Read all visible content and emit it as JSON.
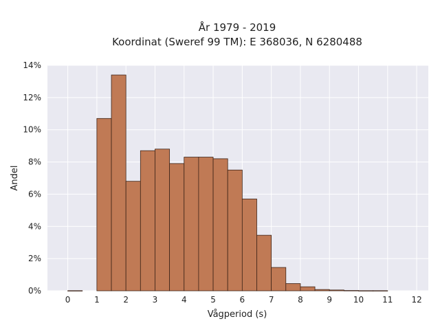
{
  "chart_data": {
    "type": "bar",
    "title_line1": "År 1979 - 2019",
    "title_line2": "Koordinat (Sweref 99 TM): E 368036, N 6280488",
    "xlabel": "Vågperiod (s)",
    "ylabel": "Andel",
    "xlim": [
      -0.7,
      12.4
    ],
    "ylim": [
      0,
      0.14
    ],
    "x_ticks": [
      0,
      1,
      2,
      3,
      4,
      5,
      6,
      7,
      8,
      9,
      10,
      11,
      12
    ],
    "x_tick_labels": [
      "0",
      "1",
      "2",
      "3",
      "4",
      "5",
      "6",
      "7",
      "8",
      "9",
      "10",
      "11",
      "12"
    ],
    "y_ticks": [
      0,
      0.02,
      0.04,
      0.06,
      0.08,
      0.1,
      0.12,
      0.14
    ],
    "y_tick_labels": [
      "0%",
      "2%",
      "4%",
      "6%",
      "8%",
      "10%",
      "12%",
      "14%"
    ],
    "grid": true,
    "bin_width": 0.5,
    "bins": [
      {
        "start": 0.0,
        "value": 0.0001
      },
      {
        "start": 1.0,
        "value": 0.107
      },
      {
        "start": 1.5,
        "value": 0.134
      },
      {
        "start": 2.0,
        "value": 0.068
      },
      {
        "start": 2.5,
        "value": 0.087
      },
      {
        "start": 3.0,
        "value": 0.088
      },
      {
        "start": 3.5,
        "value": 0.079
      },
      {
        "start": 4.0,
        "value": 0.083
      },
      {
        "start": 4.5,
        "value": 0.083
      },
      {
        "start": 5.0,
        "value": 0.082
      },
      {
        "start": 5.5,
        "value": 0.075
      },
      {
        "start": 6.0,
        "value": 0.057
      },
      {
        "start": 6.5,
        "value": 0.0345
      },
      {
        "start": 7.0,
        "value": 0.0145
      },
      {
        "start": 7.5,
        "value": 0.0045
      },
      {
        "start": 8.0,
        "value": 0.0025
      },
      {
        "start": 8.5,
        "value": 0.0008
      },
      {
        "start": 9.0,
        "value": 0.0005
      },
      {
        "start": 9.5,
        "value": 0.0002
      },
      {
        "start": 10.0,
        "value": 0.0001
      },
      {
        "start": 10.5,
        "value": 0.0001
      }
    ],
    "colors": {
      "bar_fill": "#c07a55",
      "bar_stroke": "#3d2418",
      "plot_bg": "#e9e9f1",
      "grid": "#ffffff"
    }
  }
}
